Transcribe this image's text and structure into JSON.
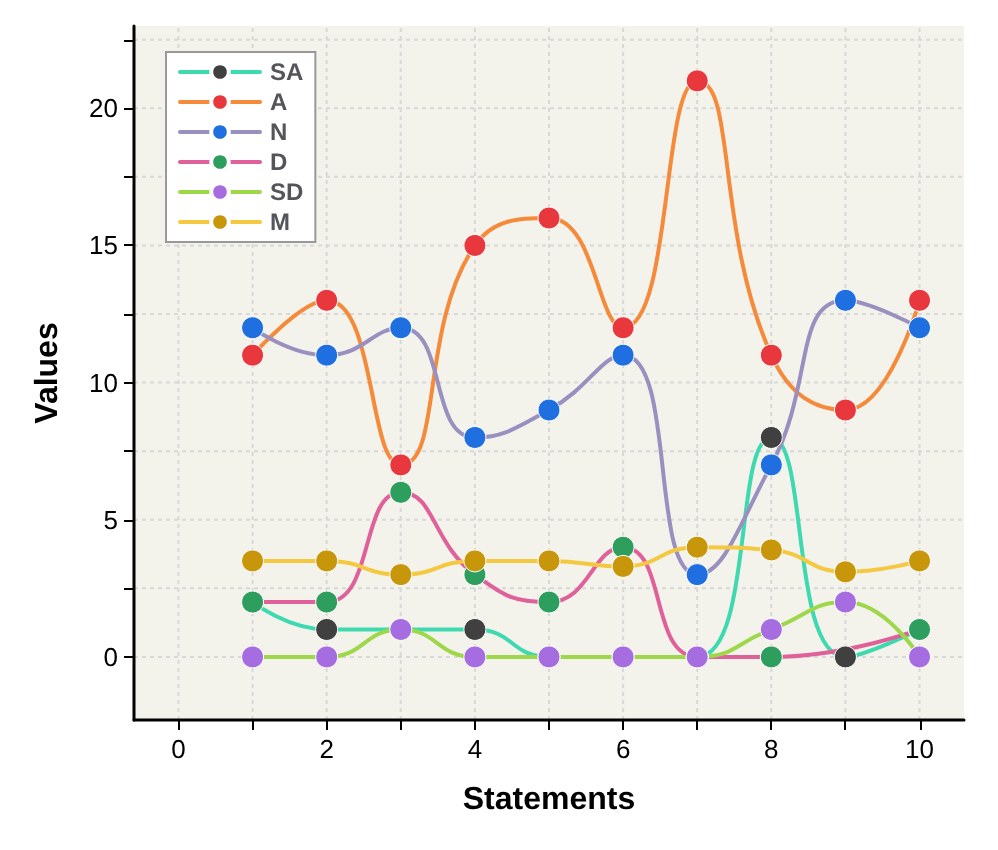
{
  "chart_data": {
    "type": "line",
    "xlabel": "Statements",
    "ylabel": "Values",
    "x": [
      1,
      2,
      3,
      4,
      5,
      6,
      7,
      8,
      9,
      10
    ],
    "series": [
      {
        "name": "SA",
        "color": "#3fd9b0",
        "colors": [
          "#404040",
          "#404040",
          "#404040",
          "#404040",
          "#404040",
          "#404040",
          "#404040",
          "#404040",
          "#404040",
          "#404040"
        ],
        "values": [
          2,
          1,
          null,
          1,
          0,
          0,
          0,
          8,
          0,
          1
        ]
      },
      {
        "name": "A",
        "color": "#f58a3a",
        "colors": [
          "#e8383d",
          "#e8383d",
          "#e8383d",
          "#e8383d",
          "#e8383d",
          "#e8383d",
          "#e8383d",
          "#e8383d",
          "#e8383d",
          "#e8383d"
        ],
        "values": [
          11,
          13,
          7,
          15,
          16,
          12,
          21,
          11,
          9,
          13
        ]
      },
      {
        "name": "N",
        "color": "#9a90c0",
        "colors": [
          "#1f6fe0",
          "#1f6fe0",
          "#1f6fe0",
          "#1f6fe0",
          "#1f6fe0",
          "#1f6fe0",
          "#1f6fe0",
          "#1f6fe0",
          "#1f6fe0",
          "#1f6fe0"
        ],
        "values": [
          12,
          11,
          12,
          8,
          9,
          11,
          3,
          7,
          13,
          12
        ]
      },
      {
        "name": "D",
        "color": "#e0609a",
        "colors": [
          "#2e9e5e",
          "#2e9e5e",
          "#2e9e5e",
          "#2e9e5e",
          "#2e9e5e",
          "#2e9e5e",
          "#2e9e5e",
          "#2e9e5e",
          "#2e9e5e",
          "#2e9e5e"
        ],
        "values": [
          2,
          2,
          6,
          3,
          2,
          4,
          0,
          0,
          null,
          1
        ]
      },
      {
        "name": "SD",
        "color": "#9ed84a",
        "colors": [
          "#a66de0",
          "#a66de0",
          "#a66de0",
          "#a66de0",
          "#a66de0",
          "#a66de0",
          "#a66de0",
          "#a66de0",
          "#a66de0",
          "#a66de0"
        ],
        "values": [
          0,
          0,
          1,
          0,
          0,
          0,
          0,
          1,
          2,
          0
        ]
      },
      {
        "name": "M",
        "color": "#f5c842",
        "colors": [
          "#c8960a",
          "#c8960a",
          "#c8960a",
          "#c8960a",
          "#c8960a",
          "#c8960a",
          "#c8960a",
          "#c8960a",
          "#c8960a",
          "#c8960a"
        ],
        "values": [
          3.5,
          3.5,
          3,
          3.5,
          3.5,
          3.3,
          4,
          3.9,
          3.1,
          3.5
        ]
      }
    ],
    "xlim": [
      -0.6,
      10.6
    ],
    "xticks": [
      0,
      {
        "value": 1,
        "label": null
      },
      2,
      {
        "value": 3,
        "label": null
      },
      4,
      {
        "value": 5,
        "label": null
      },
      6,
      {
        "value": 7,
        "label": null
      },
      8,
      {
        "value": 9,
        "label": null
      },
      10
    ],
    "ylim": [
      -2.3,
      23
    ],
    "yticks": [
      0,
      {
        "value": 2.5,
        "label": null
      },
      5,
      {
        "value": 7.5,
        "label": null
      },
      10,
      {
        "value": 12.5,
        "label": null
      },
      15,
      {
        "value": 17.5,
        "label": null
      },
      20,
      {
        "value": 22.5,
        "label": null
      }
    ],
    "grid": true,
    "legend": "top left",
    "marker": "circle",
    "line_style": "solid"
  }
}
